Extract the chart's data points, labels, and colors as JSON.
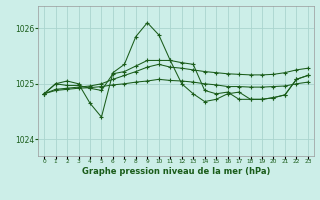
{
  "title": "Graphe pression niveau de la mer (hPa)",
  "xlim": [
    -0.5,
    23.5
  ],
  "ylim": [
    1023.7,
    1026.4
  ],
  "yticks": [
    1024,
    1025,
    1026
  ],
  "background_color": "#cceee8",
  "grid_color": "#aad4ce",
  "line_color": "#1a5c1a",
  "xtick_labels": [
    "0",
    "1",
    "2",
    "3",
    "4",
    "5",
    "6",
    "7",
    "8",
    "9",
    "10",
    "11",
    "12",
    "13",
    "14",
    "15",
    "16",
    "17",
    "18",
    "19",
    "20",
    "21",
    "22",
    "23"
  ],
  "series": [
    [
      1024.82,
      1024.9,
      1024.92,
      1024.94,
      1024.96,
      1025.0,
      1025.08,
      1025.15,
      1025.22,
      1025.3,
      1025.35,
      1025.3,
      1025.28,
      1025.25,
      1025.22,
      1025.2,
      1025.18,
      1025.17,
      1025.16,
      1025.16,
      1025.17,
      1025.2,
      1025.25,
      1025.28
    ],
    [
      1024.82,
      1024.88,
      1024.9,
      1024.92,
      1024.93,
      1024.95,
      1024.98,
      1025.0,
      1025.03,
      1025.05,
      1025.08,
      1025.06,
      1025.05,
      1025.03,
      1025.0,
      1024.98,
      1024.95,
      1024.95,
      1024.94,
      1024.94,
      1024.95,
      1024.96,
      1025.0,
      1025.03
    ],
    [
      1024.82,
      1025.0,
      1025.05,
      1025.0,
      1024.65,
      1024.4,
      1025.2,
      1025.35,
      1025.85,
      1026.1,
      1025.88,
      1025.42,
      1025.0,
      1024.82,
      1024.68,
      1024.72,
      1024.82,
      1024.85,
      1024.72,
      1024.72,
      1024.75,
      1024.8,
      1025.08,
      1025.15
    ],
    [
      1024.82,
      1025.0,
      1024.97,
      1024.97,
      1024.92,
      1024.88,
      1025.18,
      1025.22,
      1025.32,
      1025.42,
      1025.42,
      1025.42,
      1025.38,
      1025.35,
      1024.88,
      1024.82,
      1024.85,
      1024.72,
      1024.72,
      1024.72,
      1024.75,
      1024.8,
      1025.08,
      1025.15
    ]
  ]
}
